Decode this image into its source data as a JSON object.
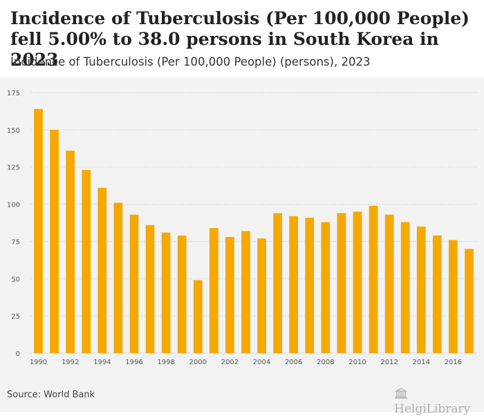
{
  "header": {
    "title": "Incidence of Tuberculosis (Per 100,000 People) fell 5.00% to 38.0 persons in South Korea in 2023",
    "subtitle": "Incidence of Tuberculosis (Per 100,000 People) (persons), 2023"
  },
  "footer": {
    "source": "Source: World Bank",
    "logo_text": "HelgiLibrary"
  },
  "colors": {
    "bar": "#f5a800",
    "grid": "#d0d0d0",
    "axis_text": "#555555",
    "plot_background": "#f2f2f2"
  },
  "chart_data": {
    "type": "bar",
    "title": "",
    "xlabel": "",
    "ylabel": "",
    "ylim": [
      0,
      175
    ],
    "yticks": [
      0,
      25,
      50,
      75,
      100,
      125,
      150,
      175
    ],
    "grid": true,
    "categories": [
      "1990",
      "1991",
      "1992",
      "1993",
      "1994",
      "1995",
      "1996",
      "1997",
      "1998",
      "1999",
      "2000",
      "2001",
      "2002",
      "2003",
      "2004",
      "2005",
      "2006",
      "2007",
      "2008",
      "2009",
      "2010",
      "2011",
      "2012",
      "2013",
      "2014",
      "2015",
      "2016",
      "2017"
    ],
    "x_tick_labels": [
      "1990",
      "",
      "1992",
      "",
      "1994",
      "",
      "1996",
      "",
      "1998",
      "",
      "2000",
      "",
      "2002",
      "",
      "2004",
      "",
      "2006",
      "",
      "2008",
      "",
      "2010",
      "",
      "2012",
      "",
      "2014",
      "",
      "2016",
      ""
    ],
    "values": [
      164,
      150,
      136,
      123,
      111,
      101,
      93,
      86,
      81,
      79,
      49,
      84,
      78,
      82,
      77,
      94,
      92,
      91,
      88,
      94,
      95,
      99,
      93,
      88,
      85,
      79,
      76,
      70
    ]
  }
}
